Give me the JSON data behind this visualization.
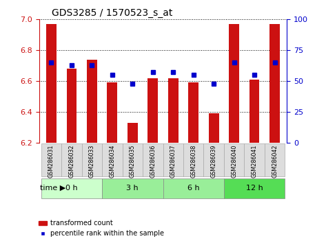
{
  "title": "GDS3285 / 1570523_s_at",
  "samples": [
    "GSM286031",
    "GSM286032",
    "GSM286033",
    "GSM286034",
    "GSM286035",
    "GSM286036",
    "GSM286037",
    "GSM286038",
    "GSM286039",
    "GSM286040",
    "GSM286041",
    "GSM286042"
  ],
  "transformed_count": [
    6.97,
    6.68,
    6.74,
    6.59,
    6.33,
    6.62,
    6.62,
    6.59,
    6.39,
    6.97,
    6.61,
    6.97
  ],
  "percentile_rank": [
    65,
    63,
    63,
    55,
    48,
    57,
    57,
    55,
    48,
    65,
    55,
    65
  ],
  "ylim_left": [
    6.2,
    7.0
  ],
  "ylim_right": [
    0,
    100
  ],
  "yticks_left": [
    6.2,
    6.4,
    6.6,
    6.8,
    7.0
  ],
  "yticks_right": [
    0,
    25,
    50,
    75,
    100
  ],
  "bar_color": "#cc1111",
  "marker_color": "#0000cc",
  "time_groups": [
    {
      "label": "0 h",
      "start": 0,
      "end": 3,
      "color": "#ccffcc"
    },
    {
      "label": "3 h",
      "start": 3,
      "end": 6,
      "color": "#99ee99"
    },
    {
      "label": "6 h",
      "start": 6,
      "end": 9,
      "color": "#99ee99"
    },
    {
      "label": "12 h",
      "start": 9,
      "end": 12,
      "color": "#55dd55"
    }
  ],
  "sample_bg_color": "#dddddd",
  "xlabel_time": "time",
  "legend_bar_label": "transformed count",
  "legend_marker_label": "percentile rank within the sample",
  "grid_color": "#000000",
  "grid_style": "dotted"
}
